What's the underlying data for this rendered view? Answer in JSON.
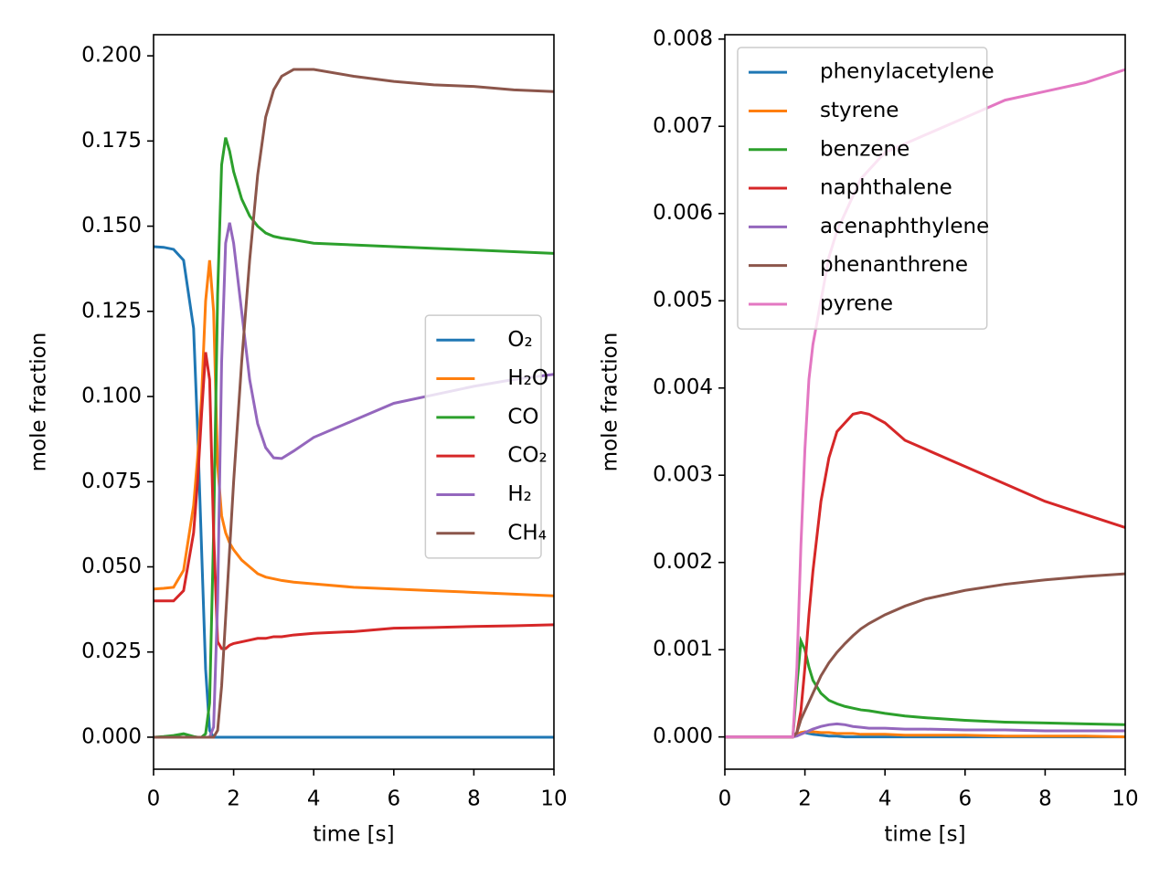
{
  "chart_data": [
    {
      "type": "line",
      "xlabel": "time [s]",
      "ylabel": "mole fraction",
      "legend": "center right",
      "x": [
        0,
        0.25,
        0.5,
        0.75,
        1.0,
        1.1,
        1.2,
        1.3,
        1.4,
        1.5,
        1.6,
        1.7,
        1.8,
        1.9,
        2.0,
        2.2,
        2.4,
        2.6,
        2.8,
        3.0,
        3.2,
        3.5,
        4,
        5,
        6,
        7,
        8,
        9,
        10
      ],
      "xlim": [
        0,
        10
      ],
      "xticks": [
        0,
        2,
        4,
        6,
        8,
        10
      ],
      "ylim": [
        -0.0094,
        0.2062
      ],
      "yticks": [
        {
          "value": 0,
          "label": "0.000"
        },
        {
          "value": 0.025,
          "label": "0.025"
        },
        {
          "value": 0.05,
          "label": "0.050"
        },
        {
          "value": 0.075,
          "label": "0.075"
        },
        {
          "value": 0.1,
          "label": "0.100"
        },
        {
          "value": 0.125,
          "label": "0.125"
        },
        {
          "value": 0.15,
          "label": "0.150"
        },
        {
          "value": 0.175,
          "label": "0.175"
        },
        {
          "value": 0.2,
          "label": "0.200"
        }
      ],
      "series": [
        {
          "name": "O₂",
          "color": "#1f77b4",
          "values": [
            0.144,
            0.1438,
            0.1432,
            0.14,
            0.12,
            0.09,
            0.055,
            0.02,
            0.002,
            0,
            0,
            0,
            0,
            0,
            0,
            0,
            0,
            0,
            0,
            0,
            0,
            0,
            0,
            0,
            0,
            0,
            0,
            0,
            0
          ]
        },
        {
          "name": "H₂O",
          "color": "#ff7f0e",
          "values": [
            0.0435,
            0.0437,
            0.044,
            0.049,
            0.068,
            0.082,
            0.1,
            0.128,
            0.14,
            0.125,
            0.08,
            0.065,
            0.06,
            0.057,
            0.055,
            0.052,
            0.05,
            0.048,
            0.047,
            0.0465,
            0.046,
            0.0455,
            0.045,
            0.044,
            0.0435,
            0.043,
            0.0425,
            0.042,
            0.0415
          ]
        },
        {
          "name": "CO",
          "color": "#2ca02c",
          "values": [
            0,
            0.0002,
            0.0005,
            0.001,
            0.0002,
            0,
            0,
            0.001,
            0.01,
            0.06,
            0.13,
            0.168,
            0.176,
            0.172,
            0.166,
            0.158,
            0.153,
            0.15,
            0.148,
            0.147,
            0.1465,
            0.146,
            0.145,
            0.1445,
            0.144,
            0.1435,
            0.143,
            0.1425,
            0.142
          ]
        },
        {
          "name": "CO₂",
          "color": "#d62728",
          "values": [
            0.04,
            0.04,
            0.04,
            0.043,
            0.06,
            0.075,
            0.095,
            0.113,
            0.105,
            0.06,
            0.028,
            0.026,
            0.026,
            0.027,
            0.0275,
            0.028,
            0.0285,
            0.029,
            0.029,
            0.0295,
            0.0295,
            0.03,
            0.0305,
            0.031,
            0.032,
            0.0322,
            0.0325,
            0.0327,
            0.033
          ]
        },
        {
          "name": "H₂",
          "color": "#9467bd",
          "values": [
            0,
            0,
            0,
            0,
            0,
            0,
            0,
            0,
            0,
            0.003,
            0.04,
            0.11,
            0.145,
            0.151,
            0.145,
            0.125,
            0.105,
            0.092,
            0.085,
            0.082,
            0.0818,
            0.084,
            0.088,
            0.093,
            0.098,
            0.1005,
            0.103,
            0.105,
            0.1065
          ]
        },
        {
          "name": "CH₄",
          "color": "#8c564b",
          "values": [
            0,
            0,
            0,
            0,
            0,
            0,
            0,
            0,
            0,
            0,
            0.002,
            0.015,
            0.035,
            0.055,
            0.075,
            0.11,
            0.14,
            0.165,
            0.182,
            0.19,
            0.194,
            0.196,
            0.196,
            0.194,
            0.1925,
            0.1915,
            0.191,
            0.19,
            0.1895
          ]
        }
      ]
    },
    {
      "type": "line",
      "xlabel": "time [s]",
      "ylabel": "mole fraction",
      "legend": "upper left",
      "x": [
        0,
        1,
        1.7,
        1.8,
        1.9,
        2.0,
        2.1,
        2.2,
        2.4,
        2.6,
        2.8,
        3.0,
        3.2,
        3.4,
        3.6,
        4,
        4.5,
        5,
        6,
        7,
        8,
        9,
        10
      ],
      "xlim": [
        0,
        10
      ],
      "xticks": [
        0,
        2,
        4,
        6,
        8,
        10
      ],
      "ylim": [
        -0.00037,
        0.00805
      ],
      "yticks": [
        {
          "value": 0,
          "label": "0.000"
        },
        {
          "value": 0.001,
          "label": "0.001"
        },
        {
          "value": 0.002,
          "label": "0.002"
        },
        {
          "value": 0.003,
          "label": "0.003"
        },
        {
          "value": 0.004,
          "label": "0.004"
        },
        {
          "value": 0.005,
          "label": "0.005"
        },
        {
          "value": 0.006,
          "label": "0.006"
        },
        {
          "value": 0.007,
          "label": "0.007"
        },
        {
          "value": 0.008,
          "label": "0.008"
        }
      ],
      "series": [
        {
          "name": "phenylacetylene",
          "color": "#1f77b4",
          "values": [
            0,
            0,
            0,
            3e-05,
            5e-05,
            5e-05,
            4e-05,
            3e-05,
            2e-05,
            1e-05,
            1e-05,
            0,
            0,
            0,
            0,
            0,
            0,
            0,
            0,
            0,
            0,
            0,
            0
          ]
        },
        {
          "name": "styrene",
          "color": "#ff7f0e",
          "values": [
            0,
            0,
            0,
            2e-05,
            5e-05,
            6e-05,
            6e-05,
            6e-05,
            5e-05,
            5e-05,
            4e-05,
            4e-05,
            4e-05,
            3e-05,
            3e-05,
            3e-05,
            2e-05,
            2e-05,
            2e-05,
            1e-05,
            1e-05,
            1e-05,
            0
          ]
        },
        {
          "name": "benzene",
          "color": "#2ca02c",
          "values": [
            0,
            0,
            0,
            0.0006,
            0.0011,
            0.001,
            0.0008,
            0.00065,
            0.0005,
            0.00042,
            0.00038,
            0.00035,
            0.00033,
            0.00031,
            0.0003,
            0.00027,
            0.00024,
            0.00022,
            0.00019,
            0.00017,
            0.00016,
            0.00015,
            0.00014
          ]
        },
        {
          "name": "naphthalene",
          "color": "#d62728",
          "values": [
            0,
            0,
            0,
            5e-05,
            0.0003,
            0.0008,
            0.0014,
            0.0019,
            0.0027,
            0.0032,
            0.0035,
            0.0036,
            0.0037,
            0.00372,
            0.0037,
            0.0036,
            0.0034,
            0.0033,
            0.0031,
            0.0029,
            0.0027,
            0.00255,
            0.0024
          ]
        },
        {
          "name": "acenaphthylene",
          "color": "#9467bd",
          "values": [
            0,
            0,
            0,
            1e-05,
            3e-05,
            5e-05,
            7e-05,
            9e-05,
            0.00012,
            0.00014,
            0.00015,
            0.00014,
            0.00012,
            0.00011,
            0.0001,
            0.0001,
            9e-05,
            9e-05,
            8e-05,
            8e-05,
            7e-05,
            7e-05,
            7e-05
          ]
        },
        {
          "name": "phenanthrene",
          "color": "#8c564b",
          "values": [
            0,
            0,
            0,
            5e-05,
            0.0002,
            0.0003,
            0.0004,
            0.0005,
            0.0007,
            0.00085,
            0.00097,
            0.00107,
            0.00116,
            0.00124,
            0.0013,
            0.0014,
            0.0015,
            0.00158,
            0.00168,
            0.00175,
            0.0018,
            0.00184,
            0.00187
          ]
        },
        {
          "name": "pyrene",
          "color": "#e377c2",
          "values": [
            0,
            0,
            0,
            0.0008,
            0.0022,
            0.0033,
            0.0041,
            0.0045,
            0.005,
            0.0055,
            0.0058,
            0.006,
            0.0062,
            0.0064,
            0.0065,
            0.0067,
            0.0068,
            0.0069,
            0.0071,
            0.0073,
            0.0074,
            0.0075,
            0.00765
          ]
        }
      ]
    }
  ]
}
